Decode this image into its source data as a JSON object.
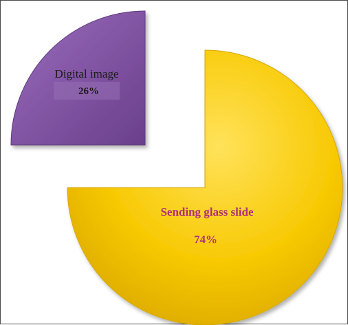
{
  "chart_data": {
    "type": "pie",
    "style": "exploded-3d",
    "slices": [
      {
        "label": "Digital image",
        "value": 26,
        "value_label": "26%",
        "color": "#8a5aa8"
      },
      {
        "label": "Sending glass slide",
        "value": 74,
        "value_label": "74%",
        "color": "#f6c800"
      }
    ]
  },
  "colors": {
    "digital_text": "#1b1b1b",
    "sending_text": "#b0307a"
  }
}
